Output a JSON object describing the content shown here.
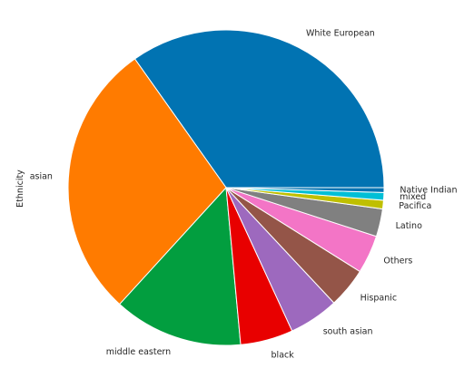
{
  "chart_data": {
    "type": "pie",
    "title": "",
    "ylabel": "Ethnicity",
    "xlabel": "",
    "slices": [
      {
        "label": "White European",
        "value": 35.5,
        "color": "#0173b2"
      },
      {
        "label": "asian",
        "value": 29.0,
        "color": "#ff7b00"
      },
      {
        "label": "middle eastern",
        "value": 13.5,
        "color": "#029e3f"
      },
      {
        "label": "black",
        "value": 5.5,
        "color": "#e80000"
      },
      {
        "label": "south asian",
        "value": 5.2,
        "color": "#9d69be"
      },
      {
        "label": "Hispanic",
        "value": 4.2,
        "color": "#945548"
      },
      {
        "label": "Others",
        "value": 4.0,
        "color": "#f375c6"
      },
      {
        "label": "Latino",
        "value": 2.9,
        "color": "#808080"
      },
      {
        "label": "Pacifica",
        "value": 0.9,
        "color": "#bfbf00"
      },
      {
        "label": "mixed",
        "value": 0.8,
        "color": "#00bfd6"
      },
      {
        "label": "Native Indian",
        "value": 0.5,
        "color": "#0173b2"
      }
    ],
    "start_angle_deg": 0,
    "direction": "counterclockwise",
    "legend": "none"
  }
}
